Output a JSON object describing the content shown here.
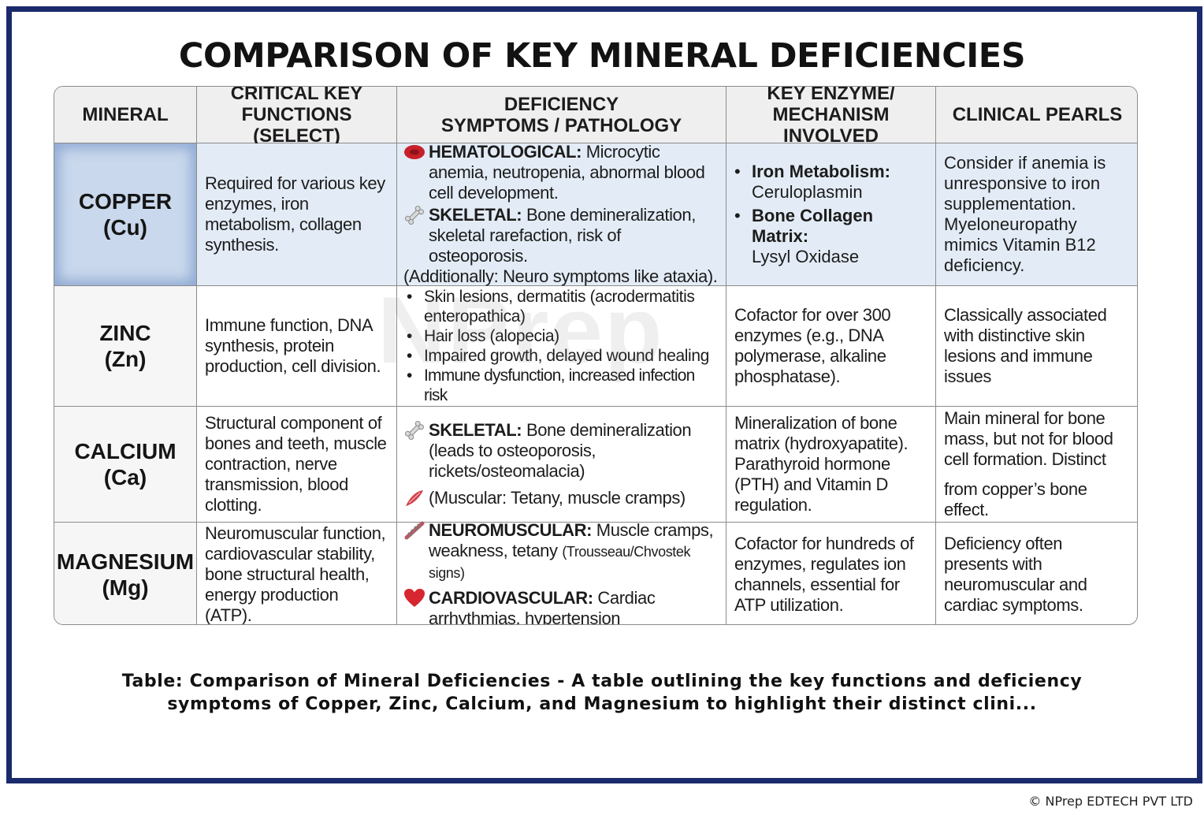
{
  "title": "COMPARISON OF KEY MINERAL DEFICIENCIES",
  "headers": {
    "mineral": "MINERAL",
    "functions": "CRITICAL KEY FUNCTIONS (SELECT)",
    "symptoms_1": "DEFICIENCY",
    "symptoms_2": "SYMPTOMS / PATHOLOGY",
    "enzyme_1": "KEY ENZYME/",
    "enzyme_2": "MECHANISM INVOLVED",
    "pearls": "CLINICAL PEARLS"
  },
  "rows": [
    {
      "mineral_name": "COPPER",
      "mineral_symbol": "(Cu)",
      "functions": "Required for various key enzymes, iron metabolism, collagen synthesis.",
      "symptoms": {
        "hema_icon": "red-blood-cell-icon",
        "hema_label": "HEMATOLOGICAL:",
        "hema_text": "Microcytic anemia, neutropenia, abnormal blood cell development.",
        "skel_icon": "bone-icon",
        "skel_label": "SKELETAL:",
        "skel_text": "Bone demineralization, skeletal rarefaction, risk of osteoporosis.",
        "extra": "(Additionally: Neuro symptoms like ataxia)."
      },
      "enzyme": {
        "item1_label": "Iron Metabolism:",
        "item1_text": "Ceruloplasmin",
        "item2_label": "Bone Collagen Matrix:",
        "item2_text": "Lysyl Oxidase"
      },
      "pearls": "Consider if anemia is unresponsive to iron supplementation. Myeloneuropathy mimics Vitamin B12 deficiency."
    },
    {
      "mineral_name": "ZINC",
      "mineral_symbol": "(Zn)",
      "functions": "Immune function, DNA synthesis, protein production, cell division.",
      "symptoms": {
        "bullets": [
          "Skin lesions, dermatitis (acrodermatitis enteropathica)",
          "Hair loss (alopecia)",
          "Impaired growth, delayed wound healing",
          "Immune dysfunction, increased infection risk"
        ]
      },
      "enzyme": "Cofactor for over 300 enzymes (e.g., DNA polymerase, alkaline phosphatase).",
      "pearls": "Classically associated with distinctive skin lesions and immune issues"
    },
    {
      "mineral_name": "CALCIUM",
      "mineral_symbol": "(Ca)",
      "functions": "Structural component of bones and teeth, muscle contraction, nerve transmission, blood clotting.",
      "symptoms": {
        "skel_icon": "bone-icon",
        "skel_label": "SKELETAL:",
        "skel_text": "Bone demineralization (leads to osteoporosis, rickets/osteomalacia)",
        "musc_icon": "muscle-icon",
        "musc_text": "(Muscular: Tetany, muscle cramps)"
      },
      "enzyme": "Mineralization of bone matrix (hydroxyapatite). Parathyroid hormone (PTH) and Vitamin D regulation.",
      "pearls_1": "Main mineral for bone mass, but not for blood cell formation. Distinct",
      "pearls_2": "from copper’s bone effect."
    },
    {
      "mineral_name": "MAGNESIUM",
      "mineral_symbol": "(Mg)",
      "functions": "Neuromuscular function, cardiovascular stability, bone structural health, energy production (ATP).",
      "symptoms": {
        "neuro_icon": "nerve-icon",
        "neuro_label": "NEUROMUSCULAR:",
        "neuro_text": "Muscle cramps, weakness, tetany",
        "neuro_small": "(Trousseau/Chvostek signs)",
        "cardio_icon": "heart-icon",
        "cardio_label": "CARDIOVASCULAR:",
        "cardio_text": "Cardiac arrhythmias, hypertension"
      },
      "enzyme": "Cofactor for hundreds of enzymes, regulates ion channels, essential for ATP utilization.",
      "pearls": "Deficiency often presents with neuromuscular and cardiac symptoms."
    }
  ],
  "watermark": "NPrep",
  "caption": "Table: Comparison of Mineral Deficiencies - A table outlining the key functions and deficiency symptoms of Copper, Zinc, Calcium, and Magnesium to highlight their distinct clini...",
  "copyright": "© NPrep EDTECH PVT LTD",
  "colors": {
    "frame": "#1b2a6b",
    "copper_row": "#e3ecf6",
    "header_bg": "#efefef",
    "icon_red": "#c8202a"
  }
}
